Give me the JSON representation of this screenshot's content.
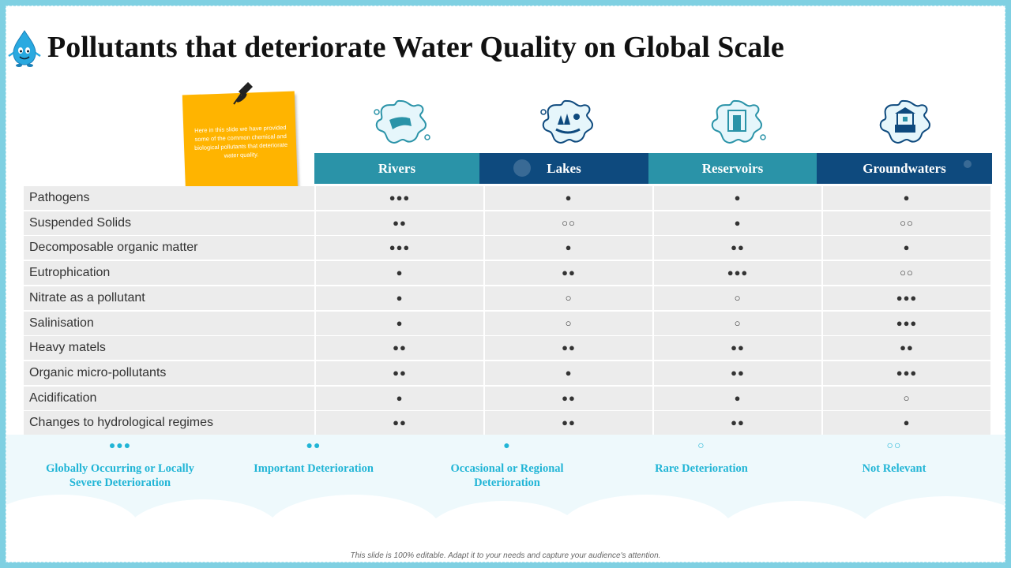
{
  "title": "Pollutants that deteriorate Water Quality on Global Scale",
  "sticky_note": "Here in this slide we have provided some of the common chemical and biological pollutants that deteriorate water quality.",
  "columns": [
    {
      "label": "Rivers",
      "color": "#2a93a8",
      "icon": "river-icon"
    },
    {
      "label": "Lakes",
      "color": "#0e4a7e",
      "icon": "lake-icon"
    },
    {
      "label": "Reservoirs",
      "color": "#2a93a8",
      "icon": "reservoir-icon"
    },
    {
      "label": "Groundwaters",
      "color": "#0e4a7e",
      "icon": "well-icon"
    }
  ],
  "rows": [
    {
      "label": "Pathogens",
      "values": [
        "●●●",
        "●",
        "●",
        "●"
      ]
    },
    {
      "label": "Suspended Solids",
      "values": [
        "●●",
        "○○",
        "●",
        "○○"
      ]
    },
    {
      "label": "Decomposable organic matter",
      "values": [
        "●●●",
        "●",
        "●●",
        "●"
      ]
    },
    {
      "label": "Eutrophication",
      "values": [
        "●",
        "●●",
        "●●●",
        "○○"
      ]
    },
    {
      "label": "Nitrate as a pollutant",
      "values": [
        "●",
        "○",
        "○",
        "●●●"
      ]
    },
    {
      "label": "Salinisation",
      "values": [
        "●",
        "○",
        "○",
        "●●●"
      ]
    },
    {
      "label": "Heavy matels",
      "values": [
        "●●",
        "●●",
        "●●",
        "●●"
      ]
    },
    {
      "label": "Organic micro-pollutants",
      "values": [
        "●●",
        "●",
        "●●",
        "●●●"
      ]
    },
    {
      "label": "Acidification",
      "values": [
        "●",
        "●●",
        "●",
        "○"
      ]
    },
    {
      "label": "Changes to hydrological regimes",
      "values": [
        "●●",
        "●●",
        "●●",
        "●"
      ]
    }
  ],
  "legend": [
    {
      "symbol": "●●●",
      "label": "Globally Occurring or Locally Severe Deterioration"
    },
    {
      "symbol": "●●",
      "label": "Important Deterioration"
    },
    {
      "symbol": "●",
      "label": "Occasional or Regional Deterioration"
    },
    {
      "symbol": "○",
      "label": "Rare Deterioration"
    },
    {
      "symbol": "○○",
      "label": "Not Relevant"
    }
  ],
  "footer": "This slide is 100% editable. Adapt it to your needs and capture your audience's attention.",
  "colors": {
    "accent": "#21b5d6",
    "header_teal": "#2a93a8",
    "header_navy": "#0e4a7e",
    "note": "#ffb400"
  }
}
